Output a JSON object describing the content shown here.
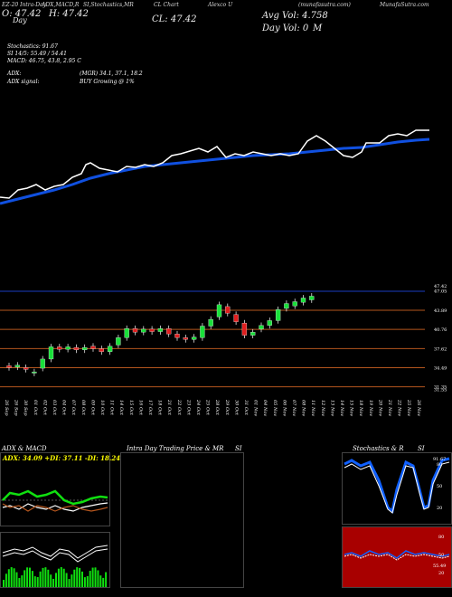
{
  "header": {
    "left": "EZ-20 Intra-Day",
    "adx_macd": "ADX,MACD,R",
    "si_stoch": "SI,Stochastics,MR",
    "cl_label": "CL Chart",
    "alexco": "Alexco U",
    "munafa": "(munafasutra.com)",
    "dup_title": "Alexco U",
    "url": "MunafaSutra.com"
  },
  "open": "O: 47.42",
  "high": "H: 47.42",
  "close": "CL: 47.42",
  "day_label": "Day",
  "avg_vol": "Avg Vol: 4.758",
  "day_vol": "Day Vol: 0",
  "million": "M",
  "stats": {
    "stochastics": "Stochastics: 91.67",
    "si": "SI 14/5: 55.49 / 54.41",
    "macd": "MACD: 46.75, 43.8, 2.95 C",
    "adx": "ADX:",
    "mgr": "(MGR) 34.1, 37.1, 18.2",
    "adx_signal": "ADX signal:",
    "buy": "BUY Growing @ 1%"
  },
  "price_axis": [
    "47.42",
    "47.05",
    "43.89",
    "40.76",
    "37.62",
    "34.49",
    "31.35",
    "31.55"
  ],
  "dates": [
    "26 Sep",
    "26 Sep",
    "30 Sep",
    "01 Oct",
    "02 Oct",
    "03 Oct",
    "04 Oct",
    "07 Oct",
    "08 Oct",
    "09 Oct",
    "10 Oct",
    "11 Oct",
    "14 Oct",
    "15 Oct",
    "16 Oct",
    "17 Oct",
    "18 Oct",
    "21 Oct",
    "22 Oct",
    "23 Oct",
    "24 Oct",
    "25 Oct",
    "28 Oct",
    "29 Oct",
    "30 Oct",
    "31 Oct",
    "01 Nov",
    "04 Nov",
    "05 Nov",
    "06 Nov",
    "07 Nov",
    "08 Nov",
    "11 Nov",
    "12 Nov",
    "13 Nov",
    "14 Nov",
    "15 Nov",
    "18 Nov",
    "19 Nov",
    "20 Nov",
    "21 Nov",
    "22 Nov",
    "25 Nov",
    "26 Nov"
  ],
  "panels": {
    "adx_title": "ADX: 34.09 +DI: 37.11 -DI: 18.24",
    "adx_head": "ADX  & MACD",
    "intra_head": "Intra  Day Trading Price  & MR",
    "si_head": "SI",
    "stoch_head": "Stochastics & R",
    "stoch_si": "SI",
    "stoch_levels": [
      "80",
      "50",
      "20"
    ],
    "rsi_levels": [
      "80",
      "50",
      "20"
    ],
    "stoch_val": "91.67",
    "rsi_val": "55.49"
  },
  "colors": {
    "background": "#000000",
    "ema": "#1050e0",
    "price_line": "#ffffff",
    "bull": "#19e03a",
    "bear": "#e01e1e",
    "level_line": "#b5561e",
    "rsi_bg": "#a80000",
    "adx_green": "#10e010"
  },
  "chart_data": {
    "type": "candlestick",
    "y_ticks": [
      47.42,
      47.05,
      43.89,
      40.76,
      37.62,
      34.49,
      31.35
    ],
    "candles": [
      {
        "d": "26 Sep",
        "o": 34.8,
        "c": 34.5
      },
      {
        "d": "26 Sep",
        "o": 34.6,
        "c": 34.9
      },
      {
        "d": "30 Sep",
        "o": 34.5,
        "c": 34.2
      },
      {
        "d": "01 Oct",
        "o": 33.6,
        "c": 33.8
      },
      {
        "d": "02 Oct",
        "o": 34.4,
        "c": 35.9
      },
      {
        "d": "03 Oct",
        "o": 35.9,
        "c": 37.9
      },
      {
        "d": "04 Oct",
        "o": 37.9,
        "c": 37.5
      },
      {
        "d": "07 Oct",
        "o": 37.5,
        "c": 37.9
      },
      {
        "d": "08 Oct",
        "o": 37.8,
        "c": 37.4
      },
      {
        "d": "09 Oct",
        "o": 37.4,
        "c": 37.8
      },
      {
        "d": "10 Oct",
        "o": 38.0,
        "c": 37.6
      },
      {
        "d": "11 Oct",
        "o": 37.6,
        "c": 37.1
      },
      {
        "d": "14 Oct",
        "o": 37.1,
        "c": 38.0
      },
      {
        "d": "15 Oct",
        "o": 38.2,
        "c": 39.4
      },
      {
        "d": "16 Oct",
        "o": 39.4,
        "c": 40.9
      },
      {
        "d": "17 Oct",
        "o": 40.9,
        "c": 40.3
      },
      {
        "d": "18 Oct",
        "o": 40.3,
        "c": 40.8
      },
      {
        "d": "21 Oct",
        "o": 40.8,
        "c": 40.4
      },
      {
        "d": "22 Oct",
        "o": 40.4,
        "c": 40.9
      },
      {
        "d": "23 Oct",
        "o": 40.9,
        "c": 40.0
      },
      {
        "d": "24 Oct",
        "o": 40.0,
        "c": 39.4
      },
      {
        "d": "25 Oct",
        "o": 39.4,
        "c": 39.1
      },
      {
        "d": "28 Oct",
        "o": 39.1,
        "c": 39.5
      },
      {
        "d": "29 Oct",
        "o": 39.4,
        "c": 41.3
      },
      {
        "d": "30 Oct",
        "o": 41.3,
        "c": 42.4
      },
      {
        "d": "31 Oct",
        "o": 42.8,
        "c": 44.8
      },
      {
        "d": "01 Nov",
        "o": 44.5,
        "c": 43.4
      },
      {
        "d": "04 Nov",
        "o": 43.2,
        "c": 42.0
      },
      {
        "d": "05 Nov",
        "o": 41.8,
        "c": 39.8
      },
      {
        "d": "06 Nov",
        "o": 39.8,
        "c": 40.3
      },
      {
        "d": "07 Nov",
        "o": 40.8,
        "c": 41.4
      },
      {
        "d": "08 Nov",
        "o": 41.4,
        "c": 42.2
      },
      {
        "d": "11 Nov",
        "o": 42.2,
        "c": 44.0
      },
      {
        "d": "12 Nov",
        "o": 44.2,
        "c": 45.0
      },
      {
        "d": "13 Nov",
        "o": 44.6,
        "c": 45.3
      },
      {
        "d": "14 Nov",
        "o": 45.2,
        "c": 45.9
      },
      {
        "d": "15 Nov",
        "o": 45.6,
        "c": 46.2
      }
    ]
  }
}
